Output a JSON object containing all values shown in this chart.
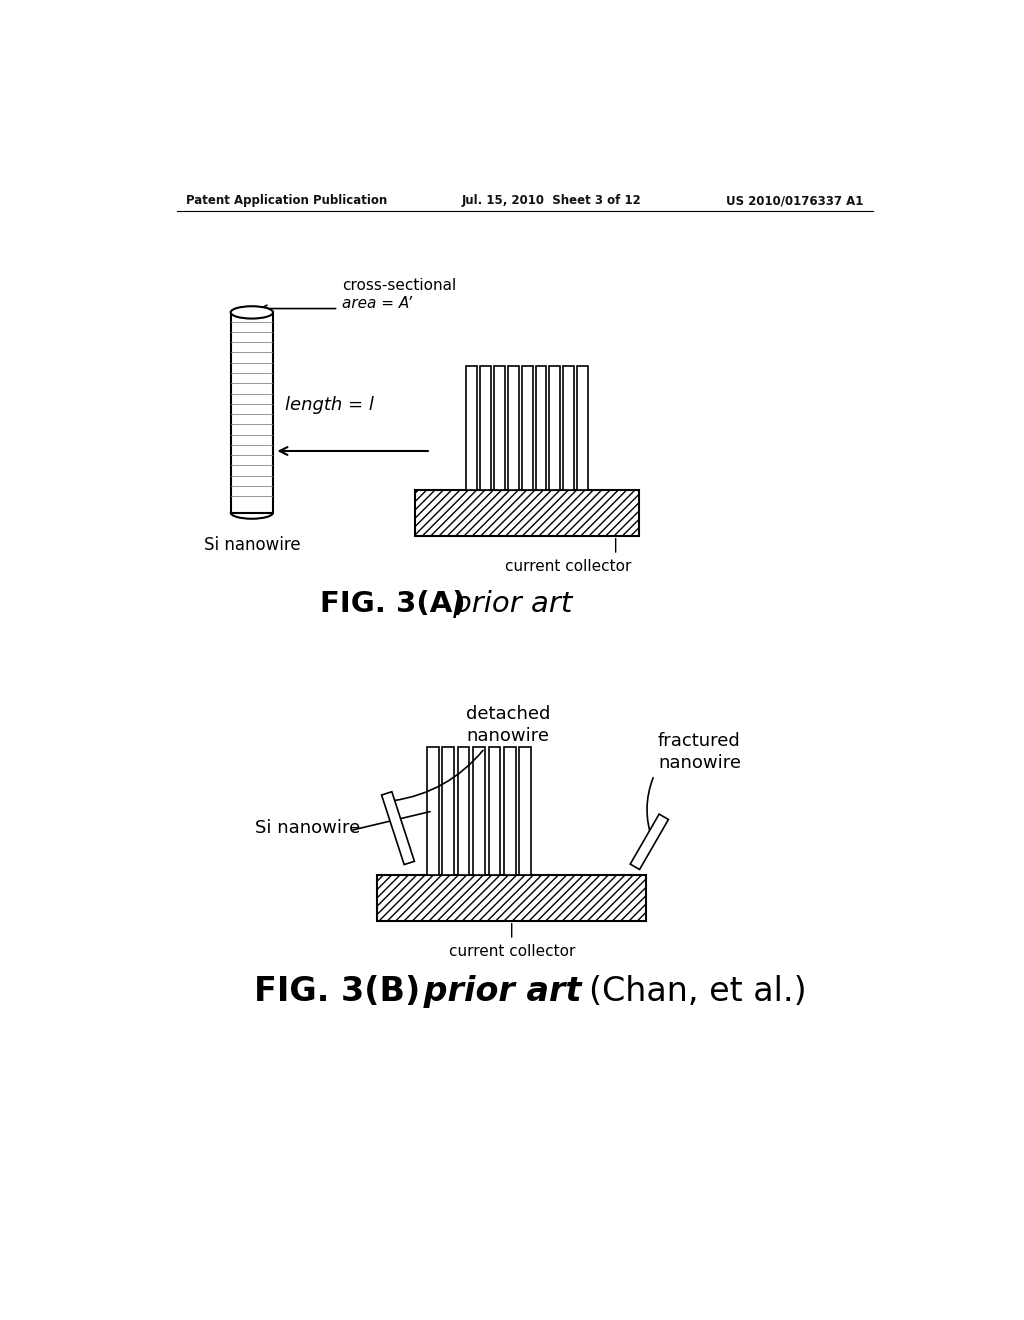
{
  "bg_color": "#ffffff",
  "text_color": "#000000",
  "header_left": "Patent Application Publication",
  "header_center": "Jul. 15, 2010  Sheet 3 of 12",
  "header_right": "US 2010/0176337 A1",
  "fig3a_caption": "FIG. 3(A)",
  "fig3a_subcaption": " prior art",
  "fig3b_caption": "FIG. 3(B)",
  "fig3b_subcaption": " prior art ",
  "fig3b_extra": "(Chan, et al.)",
  "label_cross_sectional": "cross-sectional",
  "label_area": "area = A’",
  "label_length": "length = l",
  "label_si_nanowire_a": "Si nanowire",
  "label_current_collector_a": "current collector",
  "label_detached": "detached",
  "label_nanowire_d": "nanowire",
  "label_fractured": "fractured",
  "label_fractured2": "nanowire",
  "label_si_nanowire_b": "Si nanowire",
  "label_current_collector_b": "current collector"
}
